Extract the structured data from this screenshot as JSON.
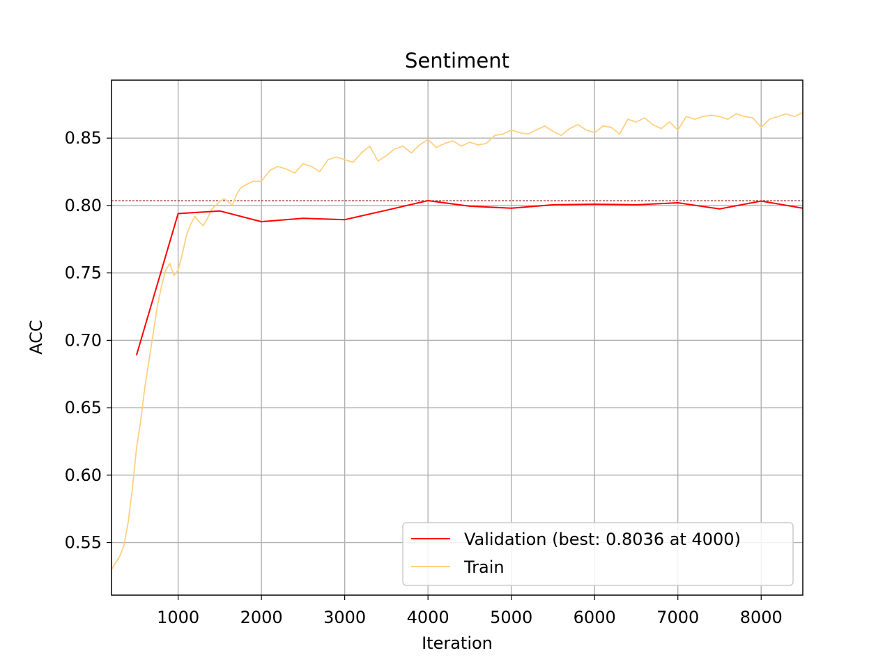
{
  "chart_data": {
    "type": "line",
    "title": "Sentiment",
    "xlabel": "Iteration",
    "ylabel": "ACC",
    "xlim": [
      200,
      8500
    ],
    "ylim": [
      0.511,
      0.893
    ],
    "xticks": [
      1000,
      2000,
      3000,
      4000,
      5000,
      6000,
      7000,
      8000
    ],
    "yticks": [
      0.55,
      0.6,
      0.65,
      0.7,
      0.75,
      0.8,
      0.85
    ],
    "ytick_labels": [
      "0.55",
      "0.60",
      "0.65",
      "0.70",
      "0.75",
      "0.80",
      "0.85"
    ],
    "grid": true,
    "legend_position": "lower-right",
    "best_line": {
      "y": 0.8036,
      "color": "#8b0000"
    },
    "series": [
      {
        "name": "Validation (best: 0.8036 at 4000)",
        "color": "#ff0000",
        "x": [
          500,
          1000,
          1500,
          2000,
          2500,
          3000,
          3500,
          4000,
          4500,
          5000,
          5500,
          6000,
          6500,
          7000,
          7500,
          8000,
          8500
        ],
        "y": [
          0.689,
          0.794,
          0.796,
          0.788,
          0.7905,
          0.7895,
          0.7965,
          0.8036,
          0.7995,
          0.798,
          0.8005,
          0.801,
          0.8005,
          0.802,
          0.7975,
          0.8033,
          0.798
        ]
      },
      {
        "name": "Train",
        "color": "#ffd080",
        "x": [
          200,
          250,
          300,
          350,
          400,
          450,
          500,
          550,
          600,
          650,
          700,
          750,
          800,
          850,
          900,
          950,
          1000,
          1050,
          1100,
          1150,
          1200,
          1250,
          1300,
          1350,
          1400,
          1450,
          1500,
          1550,
          1600,
          1650,
          1700,
          1750,
          1800,
          1900,
          2000,
          2100,
          2200,
          2300,
          2400,
          2500,
          2600,
          2700,
          2800,
          2900,
          3000,
          3100,
          3200,
          3300,
          3400,
          3500,
          3600,
          3700,
          3800,
          3900,
          4000,
          4100,
          4200,
          4300,
          4400,
          4500,
          4600,
          4700,
          4800,
          4900,
          5000,
          5100,
          5200,
          5300,
          5400,
          5500,
          5600,
          5700,
          5800,
          5900,
          6000,
          6100,
          6200,
          6300,
          6400,
          6500,
          6600,
          6700,
          6800,
          6900,
          7000,
          7100,
          7200,
          7300,
          7400,
          7500,
          7600,
          7700,
          7800,
          7900,
          8000,
          8100,
          8200,
          8300,
          8400,
          8500
        ],
        "y": [
          0.53,
          0.535,
          0.54,
          0.548,
          0.565,
          0.59,
          0.62,
          0.64,
          0.665,
          0.685,
          0.705,
          0.725,
          0.74,
          0.752,
          0.757,
          0.748,
          0.752,
          0.764,
          0.778,
          0.786,
          0.792,
          0.788,
          0.785,
          0.79,
          0.797,
          0.8,
          0.803,
          0.805,
          0.803,
          0.8,
          0.808,
          0.813,
          0.815,
          0.818,
          0.818,
          0.826,
          0.829,
          0.827,
          0.824,
          0.831,
          0.829,
          0.825,
          0.834,
          0.836,
          0.834,
          0.832,
          0.839,
          0.844,
          0.833,
          0.837,
          0.842,
          0.844,
          0.839,
          0.845,
          0.849,
          0.843,
          0.846,
          0.848,
          0.844,
          0.847,
          0.845,
          0.846,
          0.852,
          0.853,
          0.856,
          0.854,
          0.853,
          0.856,
          0.859,
          0.855,
          0.852,
          0.857,
          0.86,
          0.856,
          0.854,
          0.859,
          0.858,
          0.853,
          0.864,
          0.862,
          0.865,
          0.86,
          0.857,
          0.862,
          0.856,
          0.866,
          0.864,
          0.866,
          0.867,
          0.866,
          0.864,
          0.868,
          0.866,
          0.865,
          0.858,
          0.864,
          0.866,
          0.868,
          0.866,
          0.869
        ]
      }
    ]
  }
}
